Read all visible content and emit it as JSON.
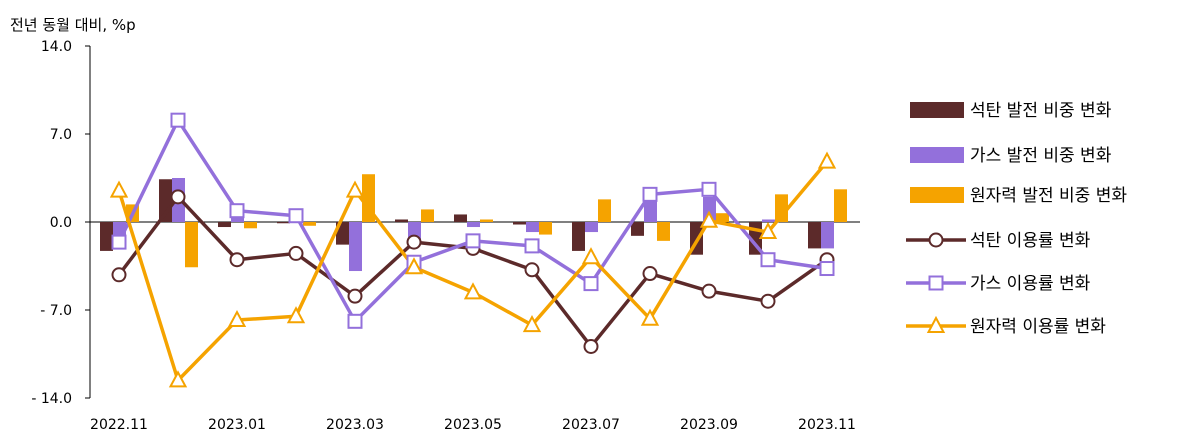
{
  "chart_data": {
    "type": "bar+line",
    "unit_label": "전년 동월 대비, %p",
    "y_ticks": [
      "14.0",
      "7.0",
      "0.0",
      "- 7.0",
      "- 14.0"
    ],
    "ylim": [
      -14,
      14
    ],
    "categories": [
      "2022.11",
      "2022.12",
      "2023.01",
      "2023.02",
      "2023.03",
      "2023.04",
      "2023.05",
      "2023.06",
      "2023.07",
      "2023.08",
      "2023.09",
      "2023.10",
      "2023.11"
    ],
    "x_tick_labels": [
      "2022.11",
      "",
      "2023.01",
      "",
      "2023.03",
      "",
      "2023.05",
      "",
      "2023.07",
      "",
      "2023.09",
      "",
      "2023.11"
    ],
    "legend_position": "right",
    "bar_series": [
      {
        "name": "석탄 발전 비중 변화",
        "color": "#5c2a2a",
        "values": [
          -2.3,
          3.4,
          -0.4,
          -0.1,
          -1.8,
          0.2,
          0.6,
          -0.2,
          -2.3,
          -1.1,
          -2.6,
          -2.6,
          -2.1
        ]
      },
      {
        "name": "가스 발전 비중 변화",
        "color": "#9370db",
        "values": [
          -1.1,
          3.5,
          0.5,
          0.3,
          -3.9,
          -1.6,
          -0.4,
          -0.8,
          -0.8,
          1.8,
          2.0,
          0.2,
          -2.1
        ]
      },
      {
        "name": "원자력 발전 비중 변화",
        "color": "#f5a300",
        "values": [
          1.4,
          -3.6,
          -0.5,
          -0.3,
          3.8,
          1.0,
          0.2,
          -1.0,
          1.8,
          -1.5,
          0.7,
          2.2,
          2.6
        ]
      }
    ],
    "line_series": [
      {
        "name": "석탄 이용률 변화",
        "color": "#5c2a2a",
        "marker": "circle",
        "values": [
          -4.2,
          2.0,
          -3.0,
          -2.5,
          -5.9,
          -1.6,
          -2.1,
          -3.8,
          -9.9,
          -4.1,
          -5.5,
          -6.3,
          -3.0
        ]
      },
      {
        "name": "가스 이용률 변화",
        "color": "#9370db",
        "marker": "square",
        "values": [
          -1.6,
          8.1,
          0.9,
          0.5,
          -7.9,
          -3.2,
          -1.5,
          -1.9,
          -4.9,
          2.2,
          2.6,
          -3.0,
          -3.7
        ]
      },
      {
        "name": "원자력 이용률 변화",
        "color": "#f5a300",
        "marker": "triangle",
        "values": [
          2.5,
          -12.6,
          -7.8,
          -7.5,
          2.5,
          -3.6,
          -5.6,
          -8.2,
          -2.8,
          -7.7,
          0.1,
          -0.8,
          4.8
        ]
      }
    ]
  }
}
